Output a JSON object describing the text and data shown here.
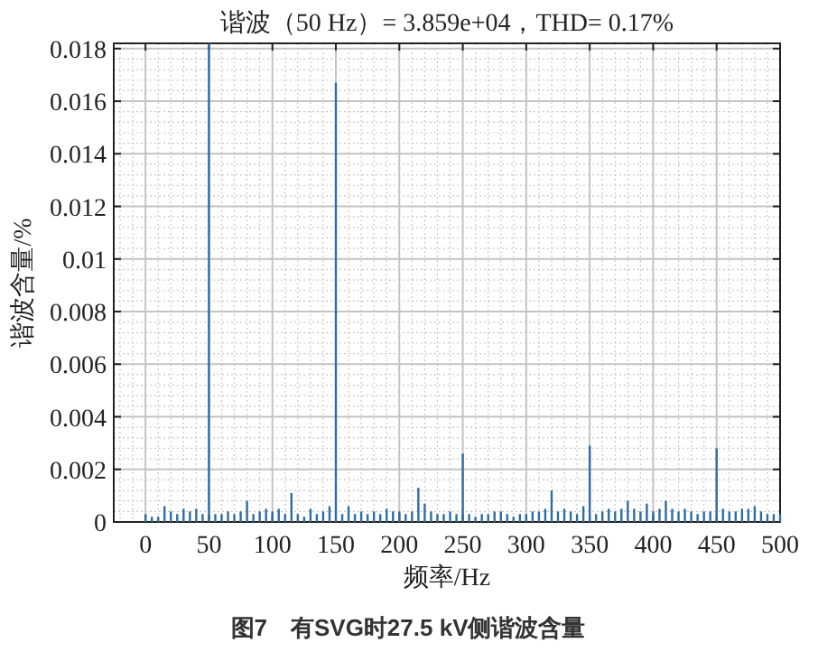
{
  "chart_data": {
    "type": "bar",
    "title": "谐波（50 Hz）= 3.859e+04，THD= 0.17%",
    "xlabel": "频率/Hz",
    "ylabel": "谐波含量/%",
    "annotations": [
      "图7　有SVG时27.5 kV侧谐波含量"
    ],
    "x": [
      0,
      5,
      10,
      15,
      20,
      25,
      30,
      35,
      40,
      45,
      50,
      55,
      60,
      65,
      70,
      75,
      80,
      85,
      90,
      95,
      100,
      105,
      110,
      115,
      120,
      125,
      130,
      135,
      140,
      145,
      150,
      155,
      160,
      165,
      170,
      175,
      180,
      185,
      190,
      195,
      200,
      205,
      210,
      215,
      220,
      225,
      230,
      235,
      240,
      245,
      250,
      255,
      260,
      265,
      270,
      275,
      280,
      285,
      290,
      295,
      300,
      305,
      310,
      315,
      320,
      325,
      330,
      335,
      340,
      345,
      350,
      355,
      360,
      365,
      370,
      375,
      380,
      385,
      390,
      395,
      400,
      405,
      410,
      415,
      420,
      425,
      430,
      435,
      440,
      445,
      450,
      455,
      460,
      465,
      470,
      475,
      480,
      485,
      490,
      495,
      500
    ],
    "series": [
      {
        "color": "#2e6da4",
        "values": [
          0.0003,
          0.0002,
          0.0002,
          0.0006,
          0.0004,
          0.0003,
          0.0005,
          0.0004,
          0.0005,
          0.0003,
          0.0182,
          0.0003,
          0.0003,
          0.0004,
          0.0003,
          0.0004,
          0.0008,
          0.0003,
          0.0004,
          0.0005,
          0.0004,
          0.0005,
          0.0003,
          0.0011,
          0.0003,
          0.0002,
          0.0005,
          0.0003,
          0.0004,
          0.0006,
          0.0167,
          0.0003,
          0.0006,
          0.0003,
          0.0004,
          0.0003,
          0.0004,
          0.0003,
          0.0005,
          0.0004,
          0.0004,
          0.0003,
          0.0004,
          0.0013,
          0.0007,
          0.0004,
          0.0003,
          0.0003,
          0.0004,
          0.0003,
          0.0026,
          0.0003,
          0.0002,
          0.0003,
          0.0003,
          0.0004,
          0.0004,
          0.0003,
          0.0002,
          0.0003,
          0.0003,
          0.0004,
          0.0004,
          0.0005,
          0.0012,
          0.0004,
          0.0005,
          0.0004,
          0.0003,
          0.0006,
          0.0029,
          0.0003,
          0.0004,
          0.0005,
          0.0004,
          0.0005,
          0.0008,
          0.0005,
          0.0004,
          0.0007,
          0.0004,
          0.0005,
          0.0008,
          0.0005,
          0.0004,
          0.0005,
          0.0004,
          0.0003,
          0.0004,
          0.0004,
          0.0028,
          0.0005,
          0.0004,
          0.0004,
          0.0005,
          0.0005,
          0.0006,
          0.0004,
          0.0003,
          0.0003,
          0.0003
        ]
      }
    ],
    "xlim": [
      -25,
      500
    ],
    "ylim": [
      0,
      0.0182
    ],
    "xticks": [
      0,
      50,
      100,
      150,
      200,
      250,
      300,
      350,
      400,
      450,
      500
    ],
    "yticks": [
      0,
      0.002,
      0.004,
      0.006,
      0.008,
      0.01,
      0.012,
      0.014,
      0.016,
      0.018
    ],
    "grid": true
  }
}
